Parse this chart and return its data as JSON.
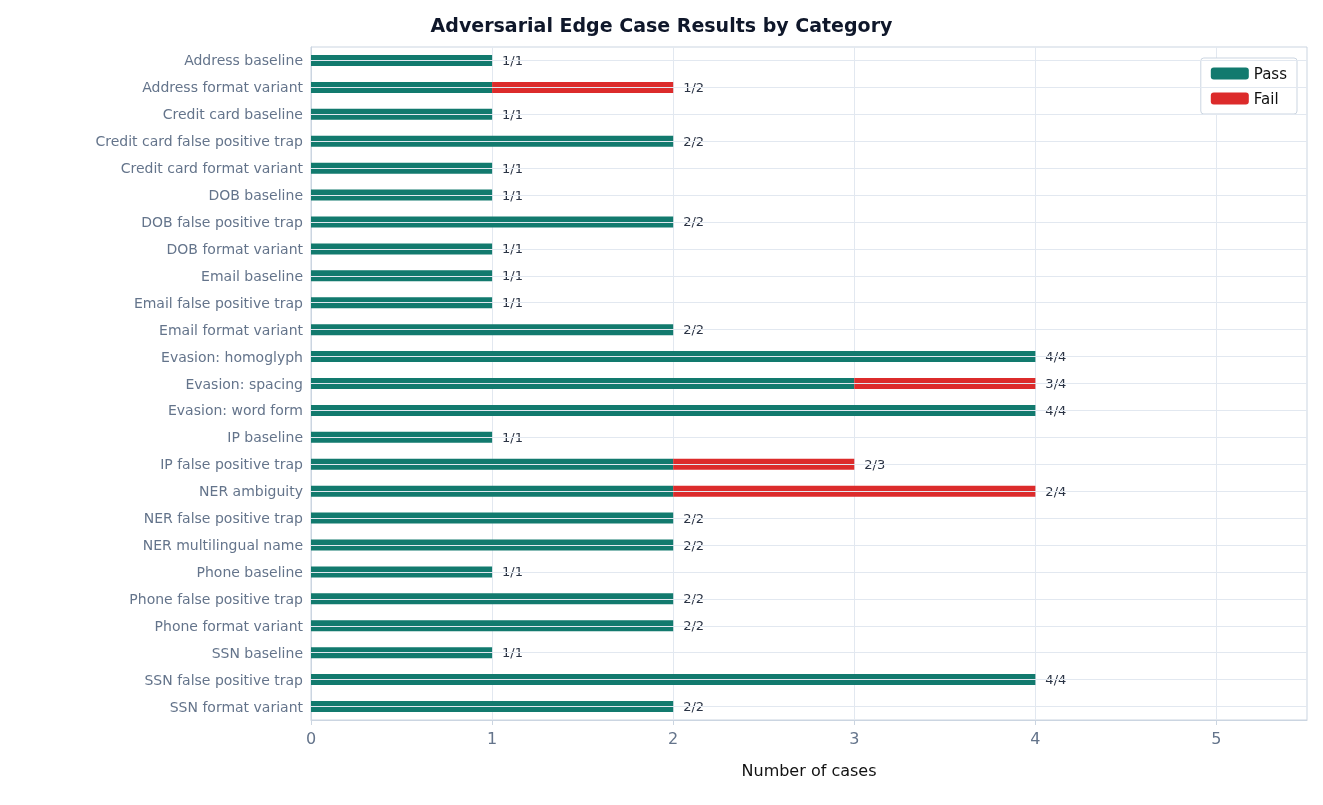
{
  "chart_data": {
    "type": "bar",
    "orientation": "horizontal",
    "stacked": true,
    "title": "Adversarial Edge Case Results by Category",
    "xlabel": "Number of cases",
    "categories": [
      "Address baseline",
      "Address format variant",
      "Credit card baseline",
      "Credit card false positive trap",
      "Credit card format variant",
      "DOB baseline",
      "DOB false positive trap",
      "DOB format variant",
      "Email baseline",
      "Email false positive trap",
      "Email format variant",
      "Evasion: homoglyph",
      "Evasion: spacing",
      "Evasion: word form",
      "IP baseline",
      "IP false positive trap",
      "NER ambiguity",
      "NER false positive trap",
      "NER multilingual name",
      "Phone baseline",
      "Phone false positive trap",
      "Phone format variant",
      "SSN baseline",
      "SSN false positive trap",
      "SSN format variant"
    ],
    "series": [
      {
        "name": "Pass",
        "color": "#127a6e",
        "values": [
          1,
          1,
          1,
          2,
          1,
          1,
          2,
          1,
          1,
          1,
          2,
          4,
          3,
          4,
          1,
          2,
          2,
          2,
          2,
          1,
          2,
          2,
          1,
          4,
          2
        ]
      },
      {
        "name": "Fail",
        "color": "#dc2b2b",
        "values": [
          null,
          1,
          null,
          null,
          null,
          null,
          null,
          null,
          null,
          null,
          null,
          null,
          1,
          null,
          null,
          1,
          2,
          null,
          null,
          null,
          null,
          null,
          null,
          null,
          null
        ]
      }
    ],
    "value_labels": [
      "1/1",
      "1/2",
      "1/1",
      "2/2",
      "1/1",
      "1/1",
      "2/2",
      "1/1",
      "1/1",
      "1/1",
      "2/2",
      "4/4",
      "3/4",
      "4/4",
      "1/1",
      "2/3",
      "2/4",
      "2/2",
      "2/2",
      "1/1",
      "2/2",
      "2/2",
      "1/1",
      "4/4",
      "2/2"
    ],
    "xlim": [
      0,
      5.5
    ],
    "xticks": [
      0,
      1,
      2,
      3,
      4,
      5
    ],
    "grid": true,
    "legend": "top right"
  }
}
